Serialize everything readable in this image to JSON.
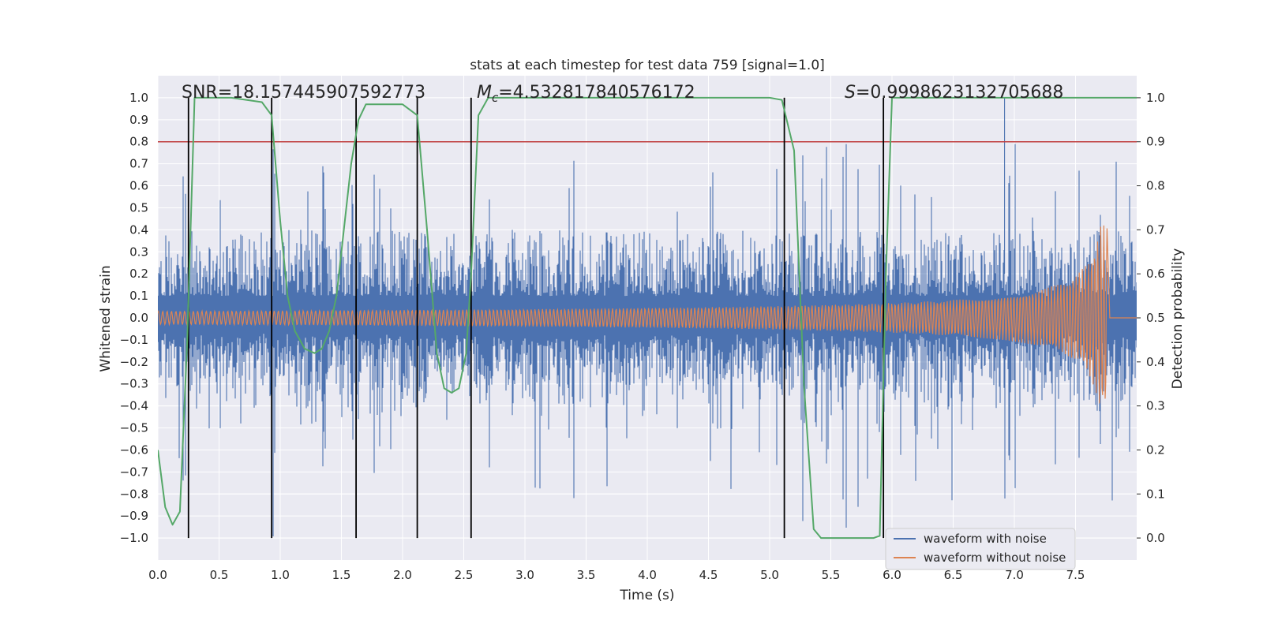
{
  "chart_data": {
    "type": "line",
    "title": "stats at each timestep for test data 759 [signal=1.0]",
    "xlabel": "Time (s)",
    "ylabel": "Whitened strain",
    "y2label": "Detection probability",
    "xlim": [
      0.0,
      8.0
    ],
    "ylim": [
      -1.1,
      1.1
    ],
    "y2lim": [
      -0.05,
      1.05
    ],
    "xticks": [
      0.0,
      0.5,
      1.0,
      1.5,
      2.0,
      2.5,
      3.0,
      3.5,
      4.0,
      4.5,
      5.0,
      5.5,
      6.0,
      6.5,
      7.0,
      7.5
    ],
    "xtick_labels": [
      "0.0",
      "0.5",
      "1.0",
      "1.5",
      "2.0",
      "2.5",
      "3.0",
      "3.5",
      "4.0",
      "4.5",
      "5.0",
      "5.5",
      "6.0",
      "6.5",
      "7.0",
      "7.5"
    ],
    "yticks": [
      1.0,
      0.9,
      0.8,
      0.7,
      0.6,
      0.5,
      0.4,
      0.3,
      0.2,
      0.1,
      0.0,
      -0.1,
      -0.2,
      -0.3,
      -0.4,
      -0.5,
      -0.6,
      -0.7,
      -0.8,
      -0.9,
      -1.0
    ],
    "ytick_labels": [
      "1.0",
      "0.9",
      "0.8",
      "0.7",
      "0.6",
      "0.5",
      "0.4",
      "0.3",
      "0.2",
      "0.1",
      "0.0",
      "−0.1",
      "−0.2",
      "−0.3",
      "−0.4",
      "−0.5",
      "−0.6",
      "−0.7",
      "−0.8",
      "−0.9",
      "−1.0"
    ],
    "y2ticks": [
      1.0,
      0.9,
      0.8,
      0.7,
      0.6,
      0.5,
      0.4,
      0.3,
      0.2,
      0.1,
      0.0
    ],
    "y2tick_labels": [
      "1.0",
      "0.9",
      "0.8",
      "0.7",
      "0.6",
      "0.5",
      "0.4",
      "0.3",
      "0.2",
      "0.1",
      "0.0"
    ],
    "annotations": {
      "snr": "SNR=18.157445907592773",
      "mc_symbol": "M",
      "mc_sub": "c",
      "mc_value": "=4.532817840576172",
      "s_symbol": "S",
      "s_value": "=0.9998623132705688"
    },
    "threshold_line": {
      "value": 0.9,
      "axis": "y2",
      "color": "#c03d3e"
    },
    "vertical_lines": [
      0.25,
      0.93,
      1.62,
      2.12,
      2.56,
      5.12,
      5.93
    ],
    "series": [
      {
        "name": "waveform with noise",
        "color": "#4c72b0",
        "envelope_min": 0.1,
        "envelope_max": 0.4,
        "spike_max": 1.0,
        "end_time": 8.0
      },
      {
        "name": "waveform without noise",
        "color": "#dd8452",
        "amp_start": 0.03,
        "amp_mid": 0.07,
        "amp_peak": 0.42,
        "merger_time": 7.76
      },
      {
        "name": "detection probability",
        "color": "#55a868",
        "axis": "y2",
        "x": [
          0.0,
          0.06,
          0.12,
          0.18,
          0.24,
          0.3,
          0.6,
          0.85,
          0.93,
          1.0,
          1.06,
          1.12,
          1.2,
          1.28,
          1.34,
          1.4,
          1.46,
          1.52,
          1.58,
          1.64,
          1.7,
          2.0,
          2.12,
          2.2,
          2.28,
          2.34,
          2.4,
          2.46,
          2.52,
          2.56,
          2.62,
          2.7,
          5.0,
          5.1,
          5.2,
          5.28,
          5.36,
          5.42,
          5.6,
          5.85,
          5.9,
          5.95,
          6.0,
          8.0
        ],
        "y": [
          0.2,
          0.07,
          0.03,
          0.06,
          0.45,
          1.0,
          1.0,
          0.99,
          0.96,
          0.72,
          0.55,
          0.47,
          0.43,
          0.42,
          0.43,
          0.47,
          0.55,
          0.7,
          0.85,
          0.95,
          0.985,
          0.985,
          0.96,
          0.7,
          0.42,
          0.34,
          0.33,
          0.34,
          0.42,
          0.6,
          0.96,
          1.0,
          1.0,
          0.995,
          0.88,
          0.35,
          0.02,
          0.0,
          0.0,
          0.0,
          0.005,
          0.6,
          1.0,
          1.0
        ]
      }
    ],
    "legend": {
      "position": "bottom-right",
      "entries": [
        "waveform with noise",
        "waveform without noise"
      ]
    }
  }
}
